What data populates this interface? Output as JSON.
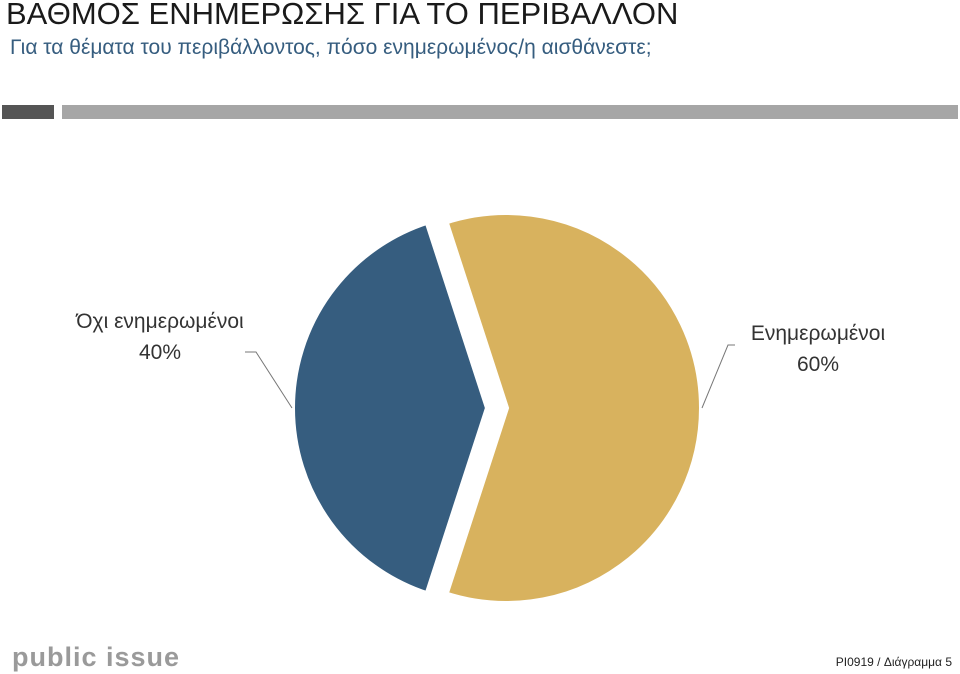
{
  "chart_data": {
    "type": "pie",
    "title": "ΒΑΘΜΟΣ ΕΝΗΜΕΡΩΣΗΣ ΓΙΑ ΤΟ ΠΕΡΙΒΑΛΛΟΝ",
    "subtitle": "Για τα θέματα του περιβάλλοντος, πόσο ενημερωμένος/η αισθάνεστε;",
    "categories": [
      "Ενημερωμένοι",
      "Όχι ενημερωμένοι"
    ],
    "values": [
      60,
      40
    ],
    "value_labels": [
      "60%",
      "40%"
    ],
    "colors": [
      "#d8b25e",
      "#365d7f"
    ]
  },
  "logo": "public issue",
  "source": "PI0919 / Διάγραμμα 5"
}
